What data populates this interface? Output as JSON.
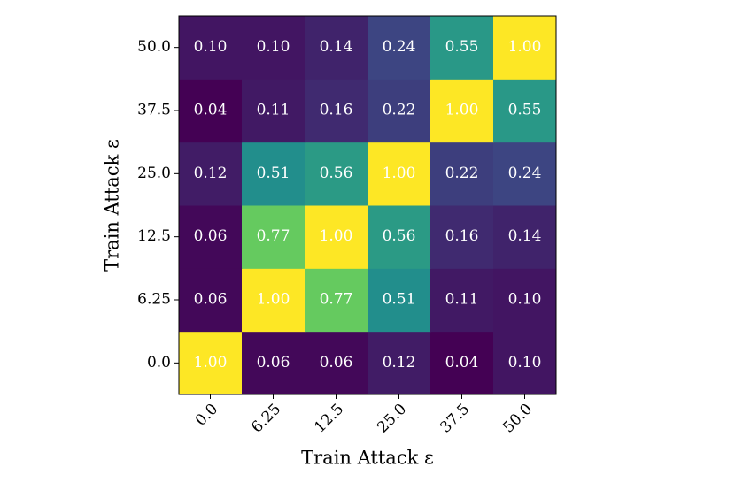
{
  "chart_data": {
    "type": "heatmap",
    "colormap": "viridis",
    "xlabel": "Train Attack ε",
    "ylabel": "Train Attack ε",
    "x_categories": [
      "0.0",
      "6.25",
      "12.5",
      "25.0",
      "37.5",
      "50.0"
    ],
    "y_categories": [
      "0.0",
      "6.25",
      "12.5",
      "25.0",
      "37.5",
      "50.0"
    ],
    "values": [
      [
        1.0,
        0.06,
        0.06,
        0.12,
        0.04,
        0.1
      ],
      [
        0.06,
        1.0,
        0.77,
        0.51,
        0.11,
        0.1
      ],
      [
        0.06,
        0.77,
        1.0,
        0.56,
        0.16,
        0.14
      ],
      [
        0.12,
        0.51,
        0.56,
        1.0,
        0.22,
        0.24
      ],
      [
        0.04,
        0.11,
        0.16,
        0.22,
        1.0,
        0.55
      ],
      [
        0.1,
        0.1,
        0.14,
        0.24,
        0.55,
        1.0
      ]
    ],
    "value_labels": [
      [
        "1.00",
        "0.06",
        "0.06",
        "0.12",
        "0.04",
        "0.10"
      ],
      [
        "0.06",
        "1.00",
        "0.77",
        "0.51",
        "0.11",
        "0.10"
      ],
      [
        "0.06",
        "0.77",
        "1.00",
        "0.56",
        "0.16",
        "0.14"
      ],
      [
        "0.12",
        "0.51",
        "0.56",
        "1.00",
        "0.22",
        "0.24"
      ],
      [
        "0.04",
        "0.11",
        "0.16",
        "0.22",
        "1.00",
        "0.55"
      ],
      [
        "0.10",
        "0.10",
        "0.14",
        "0.24",
        "0.55",
        "1.00"
      ]
    ]
  }
}
